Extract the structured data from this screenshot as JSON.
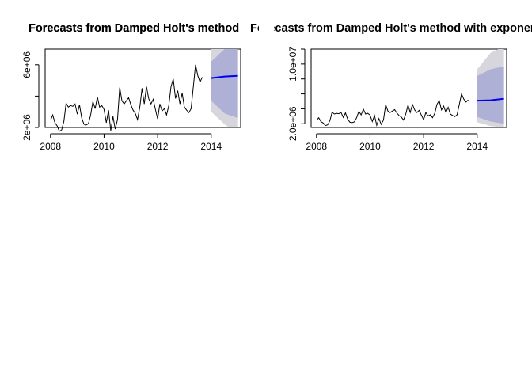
{
  "chart_data": [
    {
      "type": "line",
      "title": "Forecasts from Damped Holt's method",
      "xlabel": "",
      "ylabel": "",
      "xlim": [
        2007.8,
        2015.1
      ],
      "ylim": [
        2000000,
        7000000
      ],
      "xticks": [
        2008,
        2010,
        2012,
        2014
      ],
      "xtick_labels": [
        "2008",
        "2010",
        "2012",
        "2014"
      ],
      "yticks": [
        2000000,
        4000000,
        6000000
      ],
      "ytick_labels": [
        "2e+06",
        "",
        "6e+06"
      ],
      "history": {
        "x_start": 2008.0,
        "step": 0.08333333,
        "values": [
          2450000,
          2800000,
          2300000,
          2100000,
          1750000,
          1850000,
          2400000,
          3550000,
          3300000,
          3400000,
          3350000,
          3500000,
          2850000,
          3450000,
          2600000,
          2200000,
          2150000,
          2250000,
          2800000,
          3650000,
          3200000,
          3950000,
          3300000,
          3400000,
          3150000,
          2300000,
          3100000,
          1800000,
          2700000,
          1900000,
          2500000,
          4550000,
          3700000,
          3500000,
          3700000,
          3900000,
          3450000,
          3100000,
          2900000,
          2500000,
          3300000,
          4500000,
          3500000,
          4600000,
          3850000,
          3500000,
          3800000,
          3150000,
          2550000,
          3500000,
          3050000,
          3200000,
          2800000,
          3400000,
          4600000,
          5100000,
          3850000,
          4350000,
          3500000,
          4200000,
          3300000,
          3100000,
          2950000,
          3200000,
          4600000,
          6000000,
          5300000,
          4900000,
          5200000
        ]
      },
      "forecast": {
        "x": [
          2014.0,
          2014.5,
          2015.0
        ],
        "mean": [
          5150000,
          5250000,
          5300000
        ],
        "lo80": [
          3700000,
          2900000,
          2600000
        ],
        "hi80": [
          6200000,
          7000000,
          7400000
        ],
        "lo95": [
          3000000,
          2200000,
          1600000
        ],
        "hi95": [
          7300000,
          8100000,
          8300000
        ]
      },
      "colors": {
        "history": "#000000",
        "forecast": "#0000ee",
        "pi95": "#d6d6dc",
        "pi80": "#aeb0d6"
      }
    },
    {
      "type": "line",
      "title": "Forecasts from Damped Holt's method with exponential trend",
      "xlabel": "",
      "ylabel": "",
      "xlim": [
        2007.8,
        2015.1
      ],
      "ylim": [
        1500000,
        12000000
      ],
      "xticks": [
        2008,
        2010,
        2012,
        2014
      ],
      "xtick_labels": [
        "2008",
        "2010",
        "2012",
        "2014"
      ],
      "yticks": [
        2000000,
        4000000,
        6000000,
        8000000,
        10000000,
        12000000
      ],
      "ytick_labels": [
        "2.0e+06",
        "",
        "",
        "",
        "1.0e+07",
        ""
      ],
      "history": {
        "x_start": 2008.0,
        "step": 0.08333333,
        "values": [
          2450000,
          2800000,
          2300000,
          2100000,
          1750000,
          1850000,
          2400000,
          3550000,
          3300000,
          3400000,
          3350000,
          3500000,
          2850000,
          3450000,
          2600000,
          2200000,
          2150000,
          2250000,
          2800000,
          3650000,
          3200000,
          3950000,
          3300000,
          3400000,
          3150000,
          2300000,
          3100000,
          1800000,
          2700000,
          1900000,
          2500000,
          4550000,
          3700000,
          3500000,
          3700000,
          3900000,
          3450000,
          3100000,
          2900000,
          2500000,
          3300000,
          4500000,
          3500000,
          4600000,
          3850000,
          3500000,
          3800000,
          3150000,
          2550000,
          3500000,
          3050000,
          3200000,
          2800000,
          3400000,
          4600000,
          5100000,
          3850000,
          4350000,
          3500000,
          4200000,
          3300000,
          3100000,
          2950000,
          3200000,
          4600000,
          6000000,
          5300000,
          4900000,
          5200000
        ]
      },
      "forecast": {
        "x": [
          2014.0,
          2014.5,
          2015.0
        ],
        "mean": [
          5100000,
          5150000,
          5350000
        ],
        "lo80": [
          2900000,
          2300000,
          2000000
        ],
        "hi80": [
          8400000,
          9300000,
          9700000
        ],
        "lo95": [
          2200000,
          1700000,
          1500000
        ],
        "hi95": [
          9300000,
          11500000,
          12400000
        ]
      },
      "colors": {
        "history": "#000000",
        "forecast": "#0000ee",
        "pi95": "#d6d6dc",
        "pi80": "#aeb0d6"
      }
    }
  ]
}
